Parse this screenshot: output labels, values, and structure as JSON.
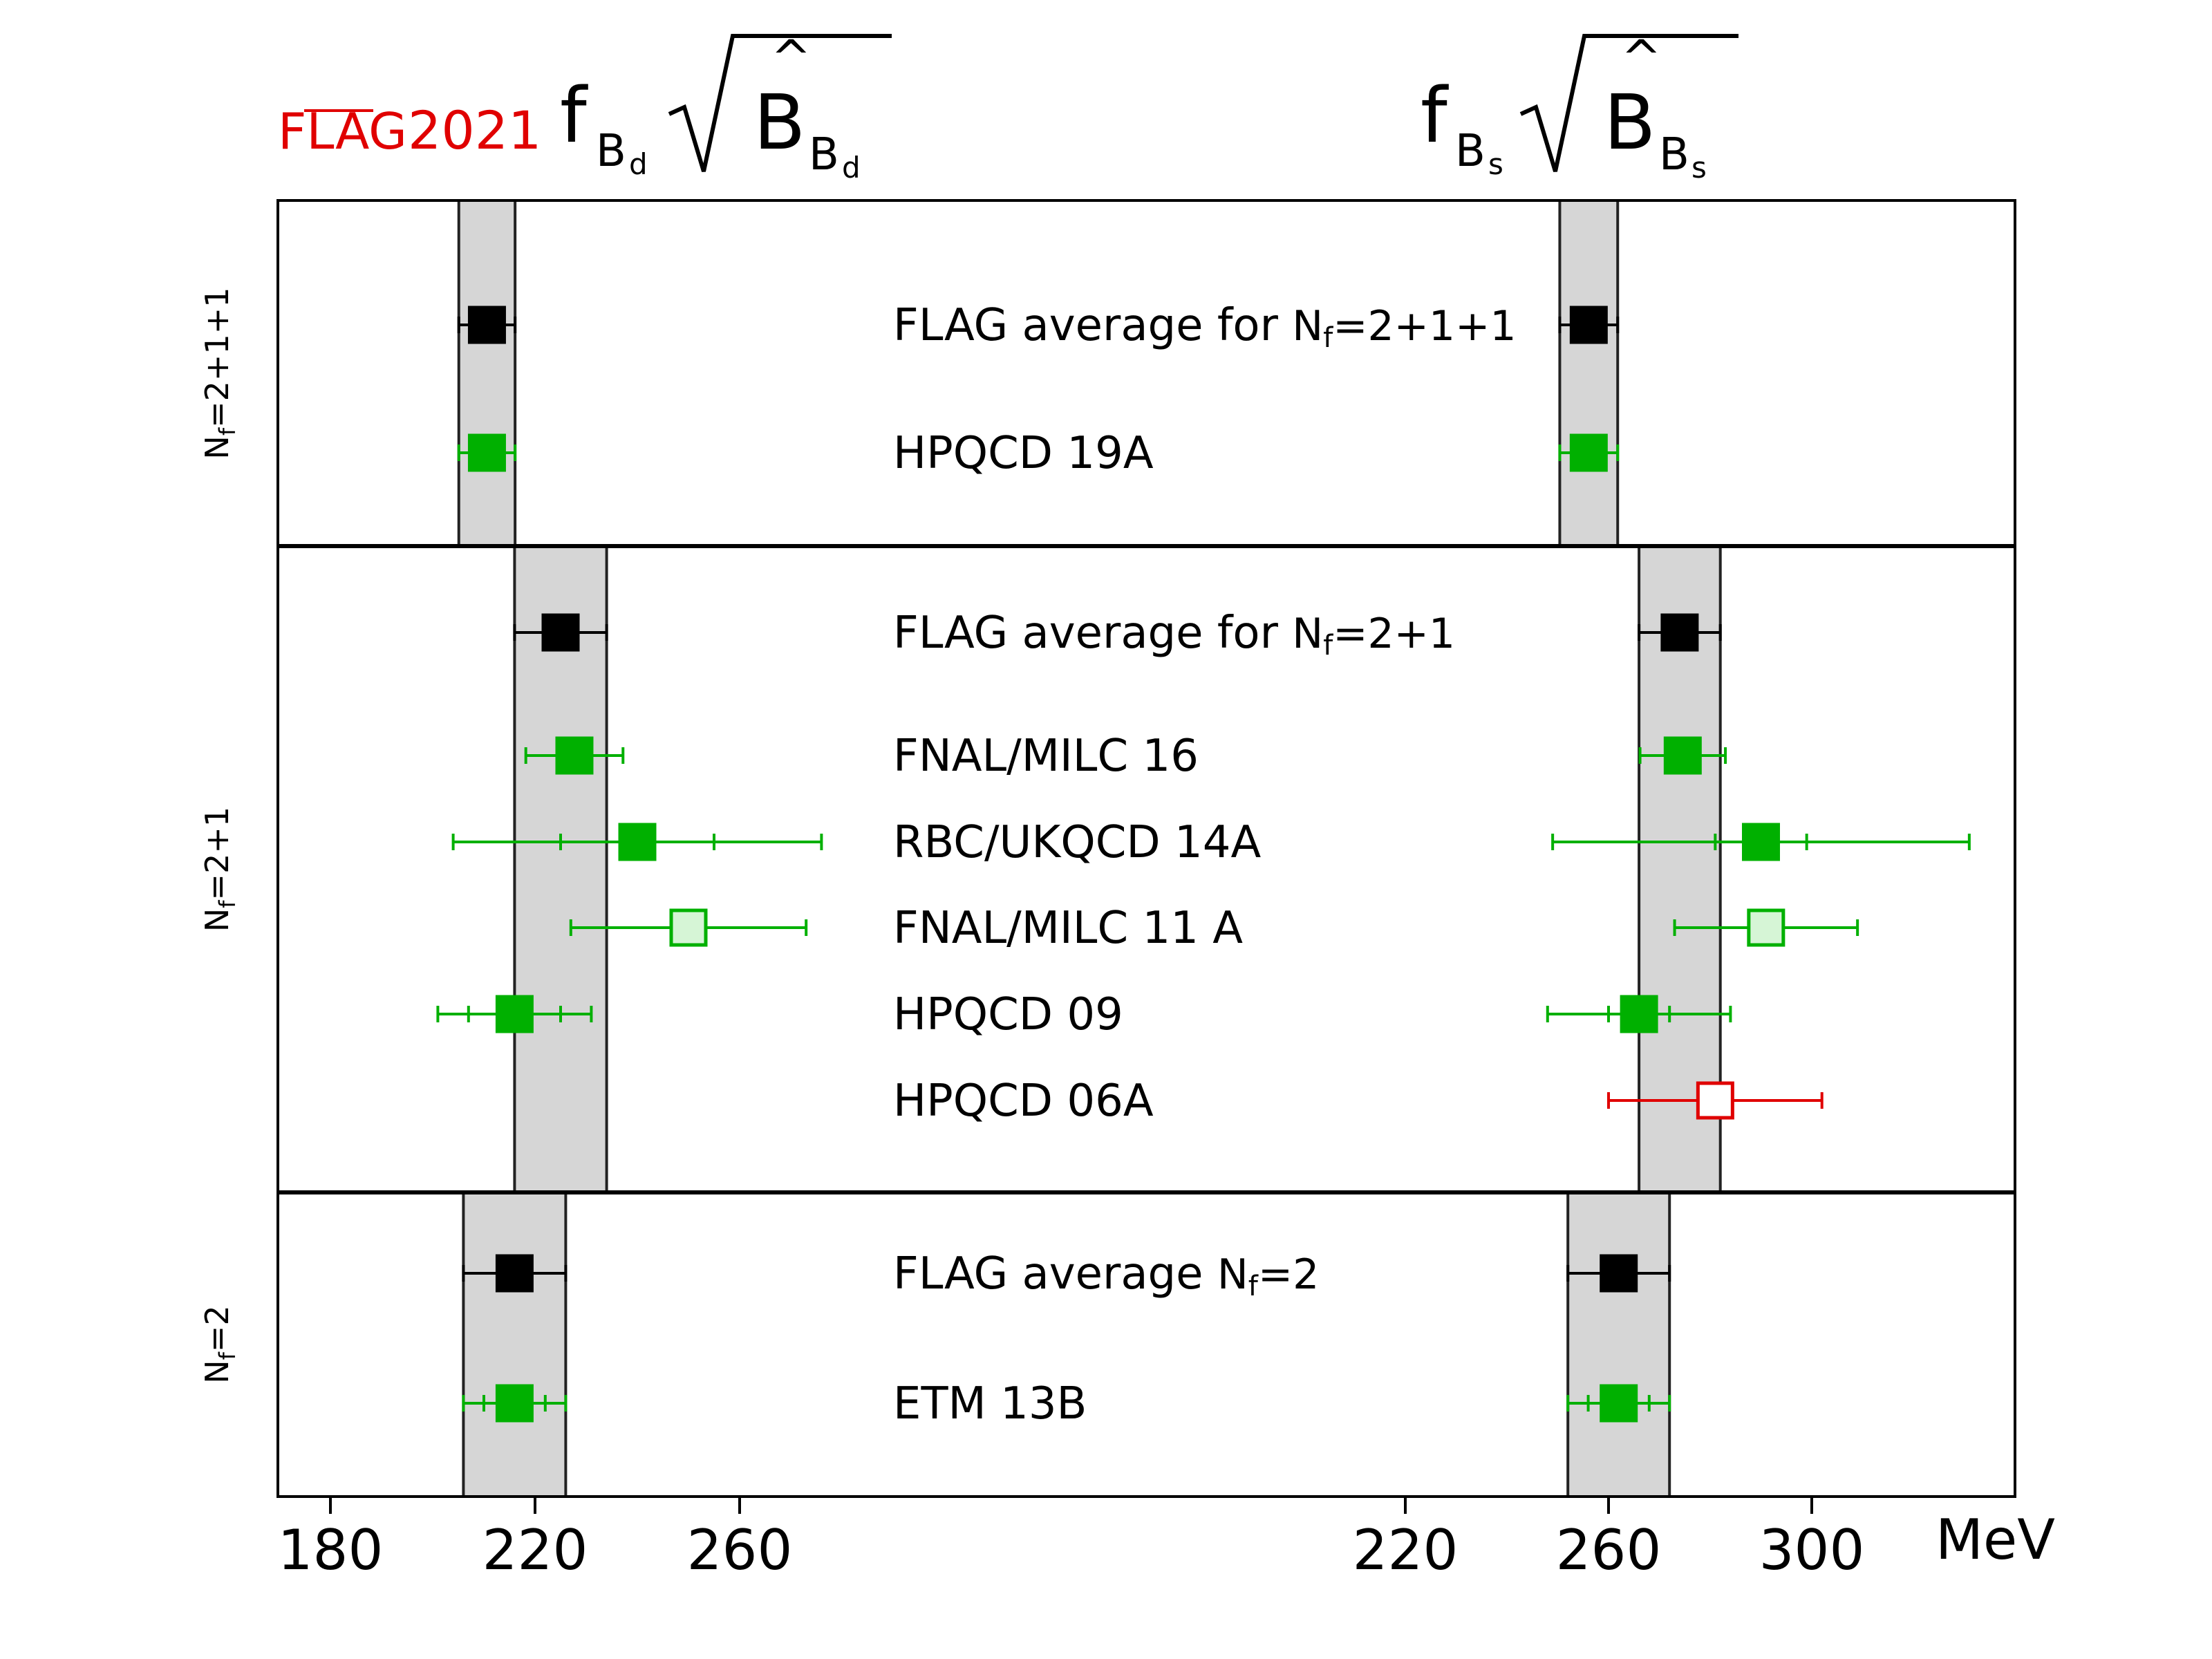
{
  "logo": {
    "flag": "FLAG",
    "year": "2021"
  },
  "titles": {
    "left": {
      "f": "f",
      "sub": "B",
      "subsub": "d"
    },
    "right": {
      "f": "f",
      "sub": "B",
      "subsub": "s"
    }
  },
  "unit": "MeV",
  "colors": {
    "average": "#000000",
    "green": "#00b000",
    "green_fill_light": "#d6f5d6",
    "red": "#e00000",
    "band": "#d6d6d6",
    "flag_red": "#e00000"
  },
  "chart_data": {
    "type": "scatter",
    "panels": [
      {
        "quantity": "f_Bd sqrt(B_Bd)",
        "xlim": [
          172,
          293
        ],
        "ticks": [
          180,
          220,
          260
        ]
      },
      {
        "quantity": "f_Bs sqrt(B_Bs)",
        "xlim": [
          206,
          340
        ],
        "ticks": [
          220,
          260,
          300
        ]
      }
    ],
    "groups": [
      {
        "label": "N_f=2+1+1",
        "label_parts": {
          "N": "N",
          "sub": "f",
          "rest": "=2+1+1"
        },
        "bands": [
          {
            "center": 210.6,
            "err": 5.5
          },
          {
            "center": 256.1,
            "err": 5.7
          }
        ],
        "rows": [
          {
            "label": "FLAG average for N_f=2+1+1",
            "label_main": "FLAG average for ",
            "label_N": "N",
            "label_sub": "f",
            "label_rest": "=2+1+1",
            "style": "average",
            "bd": {
              "value": 210.6,
              "err": 5.5
            },
            "bs": {
              "value": 256.1,
              "err": 5.7
            }
          },
          {
            "label": "HPQCD 19A",
            "label_main": "HPQCD 19A",
            "style": "green",
            "bd": {
              "value": 210.6,
              "err": 5.5
            },
            "bs": {
              "value": 256.1,
              "err": 5.7
            }
          }
        ]
      },
      {
        "label": "N_f=2+1",
        "label_parts": {
          "N": "N",
          "sub": "f",
          "rest": "=2+1"
        },
        "bands": [
          {
            "center": 225,
            "err": 9
          },
          {
            "center": 274,
            "err": 8
          }
        ],
        "rows": [
          {
            "label": "FLAG average for N_f=2+1",
            "label_main": "FLAG average for ",
            "label_N": "N",
            "label_sub": "f",
            "label_rest": "=2+1",
            "style": "average",
            "bd": {
              "value": 225,
              "err": 9
            },
            "bs": {
              "value": 274,
              "err": 8
            }
          },
          {
            "label": "FNAL/MILC 16",
            "label_main": "FNAL/MILC 16",
            "style": "green",
            "bd": {
              "value": 227.7,
              "err": 9.5
            },
            "bs": {
              "value": 274.6,
              "err": 8.4
            }
          },
          {
            "label": "RBC/UKQCD 14A",
            "label_main": "RBC/UKQCD 14A",
            "style": "green",
            "bd": {
              "value": 240,
              "err": 36,
              "err_inner": 15
            },
            "bs": {
              "value": 290,
              "err": 41,
              "err_inner": 9
            }
          },
          {
            "label": "FNAL/MILC 11 A",
            "label_main": "FNAL/MILC 11 A",
            "style": "green-open",
            "bd": {
              "value": 250,
              "err": 23
            },
            "bs": {
              "value": 291,
              "err": 18
            }
          },
          {
            "label": "HPQCD 09",
            "label_main": "HPQCD 09",
            "style": "green",
            "bd": {
              "value": 216,
              "err": 15,
              "err_inner": 9
            },
            "bs": {
              "value": 266,
              "err": 18,
              "err_inner": 6
            }
          },
          {
            "label": "HPQCD 06A",
            "label_main": "HPQCD 06A",
            "style": "red-open",
            "bd": null,
            "bs": {
              "value": 281,
              "err": 21
            }
          }
        ]
      },
      {
        "label": "N_f=2",
        "label_parts": {
          "N": "N",
          "sub": "f",
          "rest": "=2"
        },
        "bands": [
          {
            "center": 216,
            "err": 10
          },
          {
            "center": 262,
            "err": 10
          }
        ],
        "rows": [
          {
            "label": "FLAG average N_f=2",
            "label_main": "FLAG average ",
            "label_N": "N",
            "label_sub": "f",
            "label_rest": "=2",
            "style": "average",
            "bd": {
              "value": 216,
              "err": 10
            },
            "bs": {
              "value": 262,
              "err": 10
            }
          },
          {
            "label": "ETM 13B",
            "label_main": "ETM 13B",
            "style": "green",
            "bd": {
              "value": 216,
              "err": 10,
              "err_inner": 6
            },
            "bs": {
              "value": 262,
              "err": 10,
              "err_inner": 6
            }
          }
        ]
      }
    ]
  }
}
